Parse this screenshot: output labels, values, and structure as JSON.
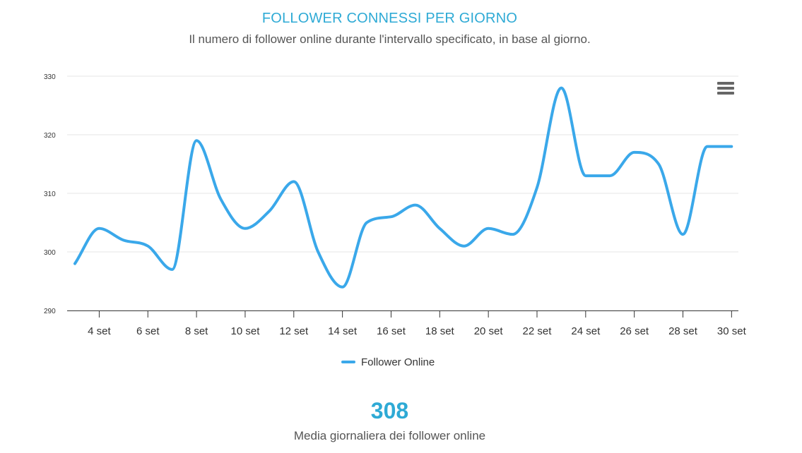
{
  "header": {
    "title": "FOLLOWER CONNESSI PER GIORNO",
    "subtitle": "Il numero di follower online durante l'intervallo specificato, in base al giorno."
  },
  "menu": {
    "icon": "hamburger-menu-icon"
  },
  "colors": {
    "accent": "#2eaad5",
    "series": "#3aa8ea",
    "grid": "#e6e6e6",
    "axis": "#333333"
  },
  "chart_data": {
    "type": "line",
    "title": "",
    "xlabel": "",
    "ylabel": "",
    "ylim": [
      290,
      330
    ],
    "yticks": [
      290,
      300,
      310,
      320,
      330
    ],
    "x": [
      "3 set",
      "4 set",
      "5 set",
      "6 set",
      "7 set",
      "8 set",
      "9 set",
      "10 set",
      "11 set",
      "12 set",
      "13 set",
      "14 set",
      "15 set",
      "16 set",
      "17 set",
      "18 set",
      "19 set",
      "20 set",
      "21 set",
      "22 set",
      "23 set",
      "24 set",
      "25 set",
      "26 set",
      "27 set",
      "28 set",
      "29 set",
      "30 set"
    ],
    "xtick_labels": [
      "4 set",
      "6 set",
      "8 set",
      "10 set",
      "12 set",
      "14 set",
      "16 set",
      "18 set",
      "20 set",
      "22 set",
      "24 set",
      "26 set",
      "28 set",
      "30 set"
    ],
    "series": [
      {
        "name": "Follower Online",
        "values": [
          298,
          304,
          302,
          301,
          297,
          319,
          309,
          304,
          307,
          312,
          300,
          294,
          305,
          306,
          308,
          304,
          301,
          304,
          303,
          311,
          328,
          313,
          313,
          317,
          315,
          303,
          318,
          318
        ]
      }
    ],
    "legend": "bottom-center",
    "grid": true
  },
  "stats": {
    "average_value": "308",
    "average_label": "Media giornaliera dei follower online"
  }
}
